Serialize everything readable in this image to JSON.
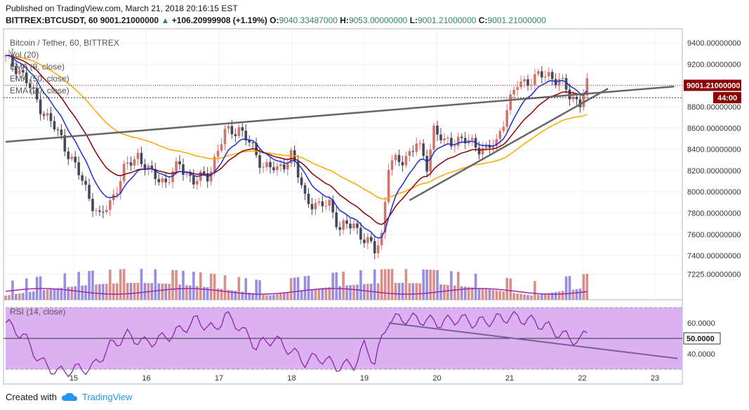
{
  "header": {
    "published": "Published on TradingView.com, March 21, 2018 20:16:15 EST",
    "symbol": "BITTREX:BTCUSDT, 60",
    "last": "9001.21000000",
    "change_icon": "triangle-up-icon",
    "change": "+106.20999908 (+1.19%)",
    "o_label": "O:",
    "o_value": "9040.33487000",
    "h_label": "H:",
    "h_value": "9053.00000000",
    "l_label": "L:",
    "l_value": "9001.21000000",
    "c_label": "C:",
    "c_value": "9001.21000000"
  },
  "legend": {
    "title": "Bitcoin / Tether, 60, BITTREX",
    "vol": "Vol (20)",
    "ema9": "EMA (9, close)",
    "ema50": "EMA (50, close)",
    "ema20": "EMA (20, close)",
    "rsi": "RSI (14, close)"
  },
  "colors": {
    "up": "#d2746b",
    "down": "#45475a",
    "ema9": "#1a2fd6",
    "ema20": "#8b0000",
    "ema50": "#ffa500",
    "trend": "#666666",
    "rsi": "#8e24aa",
    "rsi_fill": "#dcb1f2",
    "vol_up": "#d98e8a",
    "vol_down": "#9a8de0",
    "vol_ma": "#9c27b0"
  },
  "footer": {
    "created": "Created with",
    "brand": "TradingView",
    "logo_icon": "tradingview-cloud-icon"
  },
  "chart_data": {
    "type": "candlestick",
    "x_labels": [
      "15",
      "16",
      "17",
      "18",
      "19",
      "20",
      "21",
      "22",
      "23"
    ],
    "price_axis": {
      "min": 7100,
      "max": 9500,
      "ticks": [
        "9400.00000000",
        "9200.00000000",
        "9000.00000000",
        "8800.00000000",
        "8600.00000000",
        "8400.00000000",
        "8200.00000000",
        "8000.00000000",
        "7800.00000000",
        "7600.00000000",
        "7400.00000000",
        "7225.00000000"
      ],
      "tick_values": [
        9400,
        9200,
        9000,
        8800,
        8600,
        8400,
        8200,
        8000,
        7800,
        7600,
        7400,
        7225
      ]
    },
    "last_price_label": "9001.21000000",
    "last_price": 9001.21,
    "countdown_label": "44:00",
    "countdown_price": 8885,
    "rsi_axis": {
      "ticks": [
        "60.0000",
        "40.0000"
      ],
      "tick_values": [
        60,
        40
      ],
      "current_label": "50.0000",
      "current": 50,
      "upper": 70,
      "lower": 30
    },
    "price_path": [
      [
        0,
        9250
      ],
      [
        4,
        9150
      ],
      [
        10,
        8800
      ],
      [
        16,
        8500
      ],
      [
        22,
        8100
      ],
      [
        27,
        7750
      ],
      [
        30,
        7900
      ],
      [
        34,
        8200
      ],
      [
        38,
        8350
      ],
      [
        42,
        8150
      ],
      [
        46,
        8100
      ],
      [
        50,
        8250
      ],
      [
        54,
        8100
      ],
      [
        58,
        8150
      ],
      [
        63,
        8550
      ],
      [
        67,
        8600
      ],
      [
        71,
        8400
      ],
      [
        74,
        8250
      ],
      [
        78,
        8200
      ],
      [
        82,
        8350
      ],
      [
        86,
        7950
      ],
      [
        90,
        7850
      ],
      [
        93,
        7900
      ],
      [
        96,
        7650
      ],
      [
        100,
        7700
      ],
      [
        103,
        7550
      ],
      [
        106,
        7450
      ],
      [
        108,
        7600
      ],
      [
        110,
        8250
      ],
      [
        114,
        8300
      ],
      [
        118,
        8450
      ],
      [
        121,
        8250
      ],
      [
        123,
        8600
      ],
      [
        126,
        8450
      ],
      [
        130,
        8500
      ],
      [
        134,
        8450
      ],
      [
        138,
        8400
      ],
      [
        141,
        8450
      ],
      [
        144,
        8800
      ],
      [
        147,
        9000
      ],
      [
        150,
        9050
      ],
      [
        153,
        9080
      ],
      [
        156,
        9100
      ],
      [
        159,
        9050
      ],
      [
        162,
        8900
      ],
      [
        165,
        8850
      ],
      [
        167,
        9000
      ]
    ],
    "trendlines": [
      {
        "name": "resistance",
        "points": [
          [
            0,
            8470
          ],
          [
            192,
            8990
          ]
        ]
      },
      {
        "name": "support",
        "points": [
          [
            116,
            7920
          ],
          [
            173,
            8970
          ]
        ]
      }
    ],
    "rsi_path": [
      [
        0,
        60
      ],
      [
        5,
        52
      ],
      [
        10,
        35
      ],
      [
        15,
        28
      ],
      [
        20,
        30
      ],
      [
        25,
        31
      ],
      [
        30,
        45
      ],
      [
        35,
        52
      ],
      [
        40,
        47
      ],
      [
        45,
        50
      ],
      [
        50,
        55
      ],
      [
        55,
        62
      ],
      [
        60,
        55
      ],
      [
        63,
        65
      ],
      [
        67,
        58
      ],
      [
        72,
        45
      ],
      [
        77,
        50
      ],
      [
        82,
        42
      ],
      [
        86,
        35
      ],
      [
        90,
        38
      ],
      [
        95,
        32
      ],
      [
        100,
        33
      ],
      [
        103,
        45
      ],
      [
        106,
        35
      ],
      [
        110,
        62
      ],
      [
        115,
        63
      ],
      [
        120,
        62
      ],
      [
        125,
        60
      ],
      [
        130,
        63
      ],
      [
        135,
        60
      ],
      [
        140,
        62
      ],
      [
        145,
        64
      ],
      [
        150,
        62
      ],
      [
        155,
        58
      ],
      [
        160,
        52
      ],
      [
        165,
        48
      ],
      [
        167,
        55
      ]
    ],
    "rsi_trendline": [
      [
        110,
        60
      ],
      [
        193,
        37
      ]
    ]
  }
}
